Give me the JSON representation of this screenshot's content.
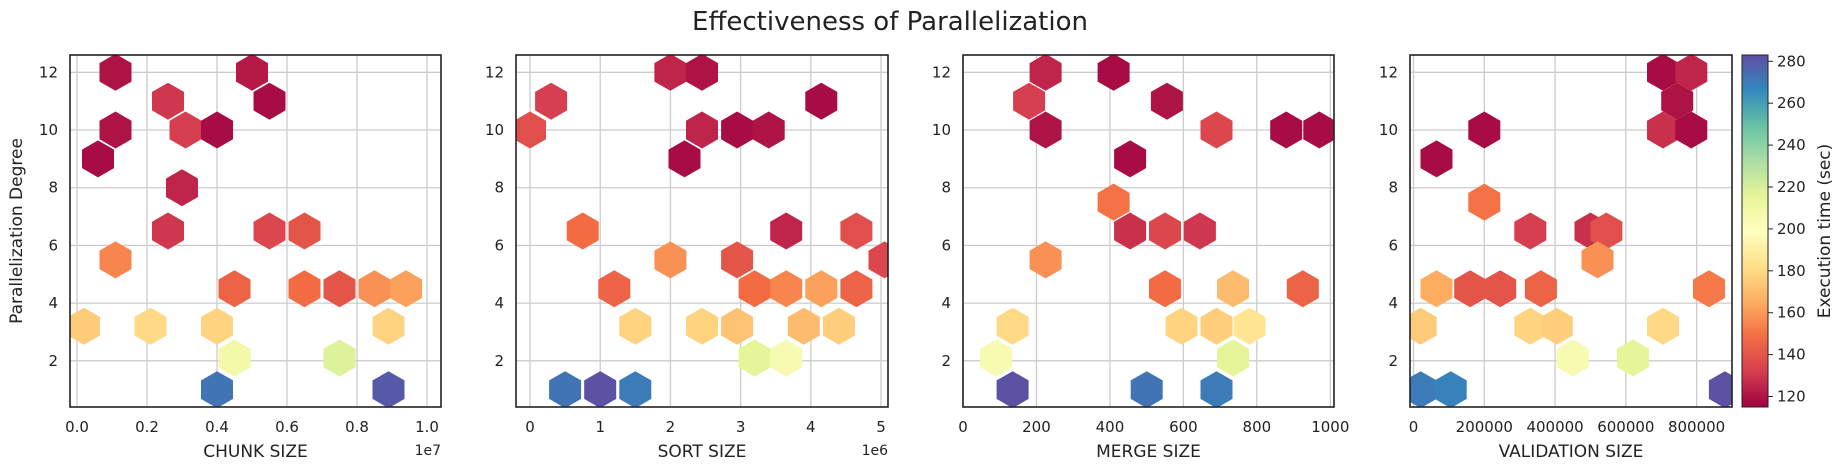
{
  "title": "Effectiveness of Parallelization",
  "colorbar": {
    "label": "Execution time (sec)",
    "ticks": [
      "120",
      "140",
      "160",
      "180",
      "200",
      "220",
      "240",
      "260",
      "280"
    ],
    "range": [
      115,
      283
    ],
    "colormap": "Spectral"
  },
  "chart_data": [
    {
      "type": "hexbin",
      "xlabel": "CHUNK SIZE",
      "ylabel": "Parallelization Degree",
      "offset_text": "1e7",
      "xlim": [
        -0.02,
        1.04
      ],
      "ylim": [
        0.4,
        12.6
      ],
      "xticks": [
        0.0,
        0.2,
        0.4,
        0.6,
        0.8,
        1.0
      ],
      "xticklabels": [
        "0.0",
        "0.2",
        "0.4",
        "0.6",
        "0.8",
        "1.0"
      ],
      "yticks": [
        2,
        4,
        6,
        8,
        10,
        12
      ],
      "yticklabels": [
        "2",
        "4",
        "6",
        "8",
        "10",
        "12"
      ],
      "points": [
        [
          0.11,
          12,
          120
        ],
        [
          0.5,
          12,
          122
        ],
        [
          0.55,
          11,
          118
        ],
        [
          0.26,
          11,
          130
        ],
        [
          0.11,
          10,
          120
        ],
        [
          0.31,
          10,
          132
        ],
        [
          0.4,
          10,
          118
        ],
        [
          0.06,
          9,
          118
        ],
        [
          0.3,
          8,
          125
        ],
        [
          0.26,
          6.5,
          130
        ],
        [
          0.55,
          6.5,
          135
        ],
        [
          0.65,
          6.5,
          140
        ],
        [
          0.11,
          5.5,
          155
        ],
        [
          0.45,
          4.5,
          145
        ],
        [
          0.65,
          4.5,
          148
        ],
        [
          0.75,
          4.5,
          140
        ],
        [
          0.85,
          4.5,
          158
        ],
        [
          0.94,
          4.5,
          162
        ],
        [
          0.02,
          3.2,
          175
        ],
        [
          0.21,
          3.2,
          180
        ],
        [
          0.4,
          3.2,
          178
        ],
        [
          0.89,
          3.2,
          178
        ],
        [
          0.45,
          2.1,
          208
        ],
        [
          0.75,
          2.1,
          218
        ],
        [
          0.4,
          1,
          272
        ],
        [
          0.89,
          1,
          280
        ]
      ]
    },
    {
      "type": "hexbin",
      "xlabel": "SORT SIZE",
      "offset_text": "1e6",
      "xlim": [
        -0.2,
        5.1
      ],
      "ylim": [
        0.4,
        12.6
      ],
      "xticks": [
        0,
        1,
        2,
        3,
        4,
        5
      ],
      "xticklabels": [
        "0",
        "1",
        "2",
        "3",
        "4",
        "5"
      ],
      "yticks": [
        2,
        4,
        6,
        8,
        10,
        12
      ],
      "yticklabels": [
        "2",
        "4",
        "6",
        "8",
        "10",
        "12"
      ],
      "points": [
        [
          2,
          12,
          125
        ],
        [
          2.45,
          12,
          120
        ],
        [
          0.3,
          11,
          132
        ],
        [
          4.15,
          11,
          118
        ],
        [
          0,
          10,
          138
        ],
        [
          2.45,
          10,
          125
        ],
        [
          2.95,
          10,
          118
        ],
        [
          3.4,
          10,
          120
        ],
        [
          2.2,
          9,
          118
        ],
        [
          0.75,
          6.5,
          148
        ],
        [
          3.65,
          6.5,
          125
        ],
        [
          4.65,
          6.5,
          138
        ],
        [
          5.05,
          5.5,
          135
        ],
        [
          2,
          5.5,
          158
        ],
        [
          2.95,
          5.5,
          140
        ],
        [
          1.2,
          4.5,
          145
        ],
        [
          3.2,
          4.5,
          148
        ],
        [
          3.65,
          4.5,
          155
        ],
        [
          4.15,
          4.5,
          162
        ],
        [
          4.65,
          4.5,
          145
        ],
        [
          1.5,
          3.2,
          178
        ],
        [
          2.45,
          3.2,
          178
        ],
        [
          2.95,
          3.2,
          172
        ],
        [
          3.9,
          3.2,
          170
        ],
        [
          4.4,
          3.2,
          176
        ],
        [
          3.2,
          2.1,
          215
        ],
        [
          3.65,
          2.1,
          205
        ],
        [
          0.5,
          1,
          272
        ],
        [
          1,
          1,
          282
        ],
        [
          1.5,
          1,
          270
        ]
      ]
    },
    {
      "type": "hexbin",
      "xlabel": "MERGE SIZE",
      "xlim": [
        0,
        1010
      ],
      "ylim": [
        0.4,
        12.6
      ],
      "xticks": [
        0,
        200,
        400,
        600,
        800,
        1000
      ],
      "xticklabels": [
        "0",
        "200",
        "400",
        "600",
        "800",
        "1000"
      ],
      "yticks": [
        2,
        4,
        6,
        8,
        10,
        12
      ],
      "yticklabels": [
        "2",
        "4",
        "6",
        "8",
        "10",
        "12"
      ],
      "points": [
        [
          225,
          12,
          125
        ],
        [
          410,
          12,
          118
        ],
        [
          180,
          11,
          132
        ],
        [
          555,
          11,
          120
        ],
        [
          225,
          10,
          120
        ],
        [
          690,
          10,
          135
        ],
        [
          880,
          10,
          118
        ],
        [
          970,
          10,
          118
        ],
        [
          455,
          9,
          118
        ],
        [
          410,
          7.5,
          150
        ],
        [
          455,
          6.5,
          128
        ],
        [
          550,
          6.5,
          135
        ],
        [
          645,
          6.5,
          130
        ],
        [
          225,
          5.5,
          158
        ],
        [
          550,
          4.5,
          148
        ],
        [
          735,
          4.5,
          170
        ],
        [
          925,
          4.5,
          145
        ],
        [
          135,
          3.2,
          180
        ],
        [
          595,
          3.2,
          178
        ],
        [
          690,
          3.2,
          176
        ],
        [
          780,
          3.2,
          185
        ],
        [
          90,
          2.1,
          205
        ],
        [
          735,
          2.1,
          215
        ],
        [
          135,
          1,
          282
        ],
        [
          500,
          1,
          272
        ],
        [
          690,
          1,
          270
        ]
      ]
    },
    {
      "type": "hexbin",
      "xlabel": "VALIDATION SIZE",
      "xlim": [
        -10000,
        900000
      ],
      "ylim": [
        0.4,
        12.6
      ],
      "xticks": [
        0,
        200000,
        400000,
        600000,
        800000
      ],
      "xticklabels": [
        "0",
        "200000",
        "400000",
        "600000",
        "800000"
      ],
      "yticks": [
        2,
        4,
        6,
        8,
        10,
        12
      ],
      "yticklabels": [
        "2",
        "4",
        "6",
        "8",
        "10",
        "12"
      ],
      "points": [
        [
          705000,
          12,
          118
        ],
        [
          785000,
          12,
          125
        ],
        [
          745000,
          11,
          120
        ],
        [
          200000,
          10,
          118
        ],
        [
          705000,
          10,
          128
        ],
        [
          785000,
          10,
          118
        ],
        [
          65000,
          9,
          118
        ],
        [
          200000,
          7.5,
          150
        ],
        [
          330000,
          6.5,
          132
        ],
        [
          500000,
          6.5,
          128
        ],
        [
          545000,
          6.5,
          138
        ],
        [
          520000,
          5.5,
          158
        ],
        [
          65000,
          4.5,
          165
        ],
        [
          160000,
          4.5,
          140
        ],
        [
          245000,
          4.5,
          140
        ],
        [
          360000,
          4.5,
          145
        ],
        [
          835000,
          4.5,
          152
        ],
        [
          20000,
          3.2,
          175
        ],
        [
          330000,
          3.2,
          178
        ],
        [
          405000,
          3.2,
          176
        ],
        [
          705000,
          3.2,
          180
        ],
        [
          450000,
          2.1,
          205
        ],
        [
          620000,
          2.1,
          215
        ],
        [
          20000,
          1,
          270
        ],
        [
          105000,
          1,
          268
        ],
        [
          880000,
          1,
          282
        ]
      ]
    }
  ]
}
